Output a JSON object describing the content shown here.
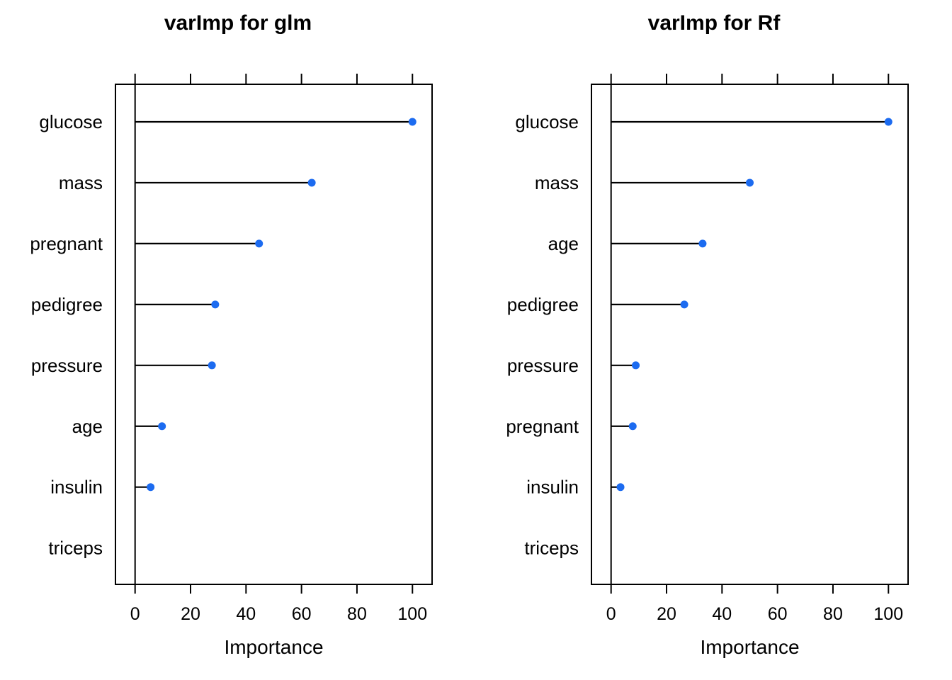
{
  "page": {
    "background": "#ffffff",
    "text_color": "#000000"
  },
  "chart_data": [
    {
      "type": "dotplot",
      "title": "varImp for glm",
      "xlabel": "Importance",
      "xlim": [
        0,
        100
      ],
      "x_ticks": [
        0,
        20,
        40,
        60,
        80,
        100
      ],
      "x_tick_labels": [
        "0",
        "20",
        "40",
        "60",
        "80",
        "100"
      ],
      "categories": [
        "glucose",
        "mass",
        "pregnant",
        "pedigree",
        "pressure",
        "age",
        "insulin",
        "triceps"
      ],
      "values": [
        100,
        63.7,
        44.7,
        28.9,
        27.7,
        9.7,
        5.6,
        0
      ],
      "point_color": "#1c6bf0",
      "line_color": "#000000",
      "grid": "off",
      "legend": "none",
      "orientation": "horizontal-lollipop",
      "axis_side_with_labels": "bottom",
      "axis_side_ticks_only": "top"
    },
    {
      "type": "dotplot",
      "title": "varImp for Rf",
      "xlabel": "Importance",
      "xlim": [
        0,
        100
      ],
      "x_ticks": [
        0,
        20,
        40,
        60,
        80,
        100
      ],
      "x_tick_labels": [
        "0",
        "20",
        "40",
        "60",
        "80",
        "100"
      ],
      "categories": [
        "glucose",
        "mass",
        "age",
        "pedigree",
        "pressure",
        "pregnant",
        "insulin",
        "triceps"
      ],
      "values": [
        100,
        50,
        33,
        26.4,
        8.9,
        7.8,
        3.4,
        0
      ],
      "point_color": "#1c6bf0",
      "line_color": "#000000",
      "grid": "off",
      "legend": "none",
      "orientation": "horizontal-lollipop",
      "axis_side_with_labels": "bottom",
      "axis_side_ticks_only": "top"
    }
  ]
}
